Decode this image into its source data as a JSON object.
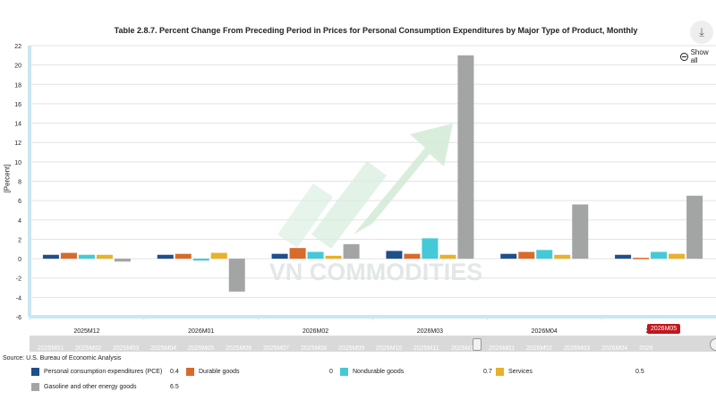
{
  "title": "Table 2.8.7. Percent Change From Preceding Period in Prices for Personal Consumption Expenditures by Major Type of Product, Monthly",
  "toolbar": {
    "show_all": "Show all"
  },
  "chart_data": {
    "type": "bar",
    "categories": [
      "2025M12",
      "2026M01",
      "2026M02",
      "2026M03",
      "2026M04",
      "2026M05"
    ],
    "ylabel": "[Percent]",
    "ylim": [
      -6,
      22
    ],
    "yticks": [
      -6,
      -4,
      -2,
      0,
      2,
      4,
      6,
      8,
      10,
      12,
      14,
      16,
      18,
      20,
      22
    ],
    "grid": true,
    "series": [
      {
        "name": "Personal consumption expenditures (PCE)",
        "color": "#1f4e8c",
        "values": [
          0.4,
          0.4,
          0.5,
          0.8,
          0.5,
          0.4
        ]
      },
      {
        "name": "Durable goods",
        "color": "#d86a2b",
        "values": [
          0.6,
          0.5,
          1.1,
          0.5,
          0.7,
          0
        ]
      },
      {
        "name": "Nondurable goods",
        "color": "#45c9d6",
        "values": [
          0.4,
          -0.2,
          0.7,
          2.1,
          0.9,
          0.7
        ]
      },
      {
        "name": "Services",
        "color": "#e8b12a",
        "values": [
          0.4,
          0.6,
          0.3,
          0.4,
          0.4,
          0.5
        ]
      },
      {
        "name": "Gasoline and other energy goods",
        "color": "#a3a5a5",
        "values": [
          -0.3,
          -3.4,
          1.5,
          21.0,
          5.6,
          6.5
        ]
      }
    ]
  },
  "navigator_labels": [
    "2025M01",
    "2025M02",
    "2025M03",
    "2025M04",
    "2025M05",
    "2025M06",
    "2025M07",
    "2025M08",
    "2025M09",
    "2025M10",
    "2025M11",
    "2025M12",
    "2026M01",
    "2026M02",
    "2026M03",
    "2026M04",
    "2026"
  ],
  "highlight_label": "2026M05",
  "source": "Source: U.S. Bureau of Economic Analysis",
  "legend_values": [
    "0.4",
    "0",
    "0.7",
    "0.5",
    "6.5"
  ]
}
